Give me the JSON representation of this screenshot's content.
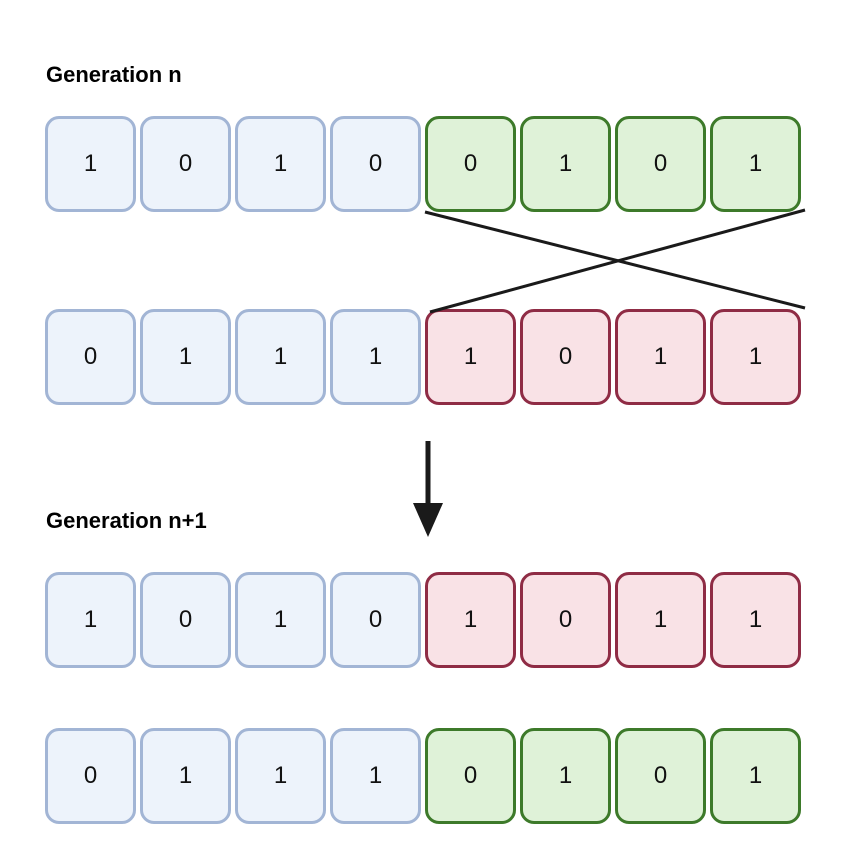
{
  "generation_n_label": "Generation n",
  "generation_n1_label": "Generation n+1",
  "rows": [
    {
      "cells": [
        {
          "value": "1",
          "color": "blue"
        },
        {
          "value": "0",
          "color": "blue"
        },
        {
          "value": "1",
          "color": "blue"
        },
        {
          "value": "0",
          "color": "blue"
        },
        {
          "value": "0",
          "color": "green"
        },
        {
          "value": "1",
          "color": "green"
        },
        {
          "value": "0",
          "color": "green"
        },
        {
          "value": "1",
          "color": "green"
        }
      ]
    },
    {
      "cells": [
        {
          "value": "0",
          "color": "blue"
        },
        {
          "value": "1",
          "color": "blue"
        },
        {
          "value": "1",
          "color": "blue"
        },
        {
          "value": "1",
          "color": "blue"
        },
        {
          "value": "1",
          "color": "red"
        },
        {
          "value": "0",
          "color": "red"
        },
        {
          "value": "1",
          "color": "red"
        },
        {
          "value": "1",
          "color": "red"
        }
      ]
    },
    {
      "cells": [
        {
          "value": "1",
          "color": "blue"
        },
        {
          "value": "0",
          "color": "blue"
        },
        {
          "value": "1",
          "color": "blue"
        },
        {
          "value": "0",
          "color": "blue"
        },
        {
          "value": "1",
          "color": "red"
        },
        {
          "value": "0",
          "color": "red"
        },
        {
          "value": "1",
          "color": "red"
        },
        {
          "value": "1",
          "color": "red"
        }
      ]
    },
    {
      "cells": [
        {
          "value": "0",
          "color": "blue"
        },
        {
          "value": "1",
          "color": "blue"
        },
        {
          "value": "1",
          "color": "blue"
        },
        {
          "value": "1",
          "color": "blue"
        },
        {
          "value": "0",
          "color": "green"
        },
        {
          "value": "1",
          "color": "green"
        },
        {
          "value": "0",
          "color": "green"
        },
        {
          "value": "1",
          "color": "green"
        }
      ]
    }
  ],
  "colors": {
    "blue_fill": "#edf3fb",
    "blue_border": "#a2b5d5",
    "green_fill": "#dff2d8",
    "green_border": "#3d7a2a",
    "red_fill": "#f9e2e6",
    "red_border": "#8f2c45",
    "line": "#1a1a1a"
  }
}
